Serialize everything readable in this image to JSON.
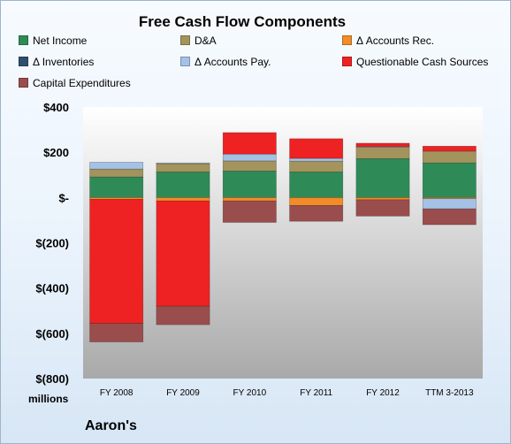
{
  "chart_data": {
    "type": "bar",
    "stacked": true,
    "title": "Free Cash Flow Components",
    "unit_label": "millions",
    "company_label": "Aaron's",
    "categories": [
      "FY 2008",
      "FY 2009",
      "FY 2010",
      "FY 2011",
      "FY 2012",
      "TTM 3-2013"
    ],
    "ylim": [
      -800,
      400
    ],
    "y_ticks": [
      400,
      200,
      0,
      -200,
      -400,
      -600,
      -800
    ],
    "y_tick_labels": [
      "$400",
      "$200",
      "$-",
      "$(200)",
      "$(400)",
      "$(600)",
      "$(800)"
    ],
    "legend_position": "top",
    "grid": false,
    "series": [
      {
        "name": "Net Income",
        "color": "#2e8b57",
        "values": [
          91,
          113,
          117,
          113,
          172,
          153
        ]
      },
      {
        "name": "D&A",
        "color": "#a3935c",
        "values": [
          35,
          37,
          45,
          48,
          50,
          52
        ]
      },
      {
        "name": "Δ Accounts Rec.",
        "color": "#f28c28",
        "values": [
          -8,
          -15,
          -15,
          -35,
          -10,
          -5
        ]
      },
      {
        "name": "Δ Inventories",
        "color": "#2f4f6f",
        "values": [
          0,
          0,
          0,
          0,
          0,
          0
        ]
      },
      {
        "name": "Δ Accounts Pay.",
        "color": "#a4c2e6",
        "values": [
          30,
          3,
          30,
          12,
          3,
          -45
        ]
      },
      {
        "name": "Questionable Cash Sources",
        "color": "#ee2222",
        "values": [
          -548,
          -465,
          95,
          87,
          15,
          22
        ]
      },
      {
        "name": "Capital Expenditures",
        "color": "#9a4d4d",
        "values": [
          -82,
          -82,
          -95,
          -70,
          -72,
          -70
        ]
      }
    ]
  }
}
